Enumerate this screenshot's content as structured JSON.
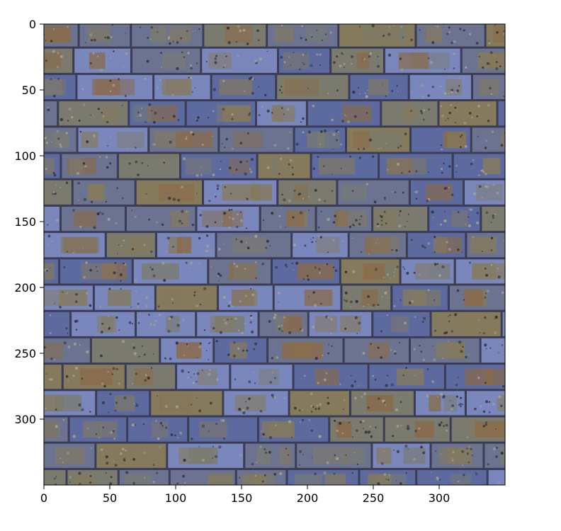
{
  "chart_data": {
    "type": "heatmap",
    "title": "",
    "xlabel": "",
    "ylabel": "",
    "xlim": [
      0,
      350
    ],
    "ylim": [
      350,
      0
    ],
    "x_ticks": [
      0,
      50,
      100,
      150,
      200,
      250,
      300
    ],
    "y_ticks": [
      0,
      50,
      100,
      150,
      200,
      250,
      300
    ],
    "x_tick_labels": [
      "0",
      "50",
      "100",
      "150",
      "200",
      "250",
      "300"
    ],
    "y_tick_labels": [
      "0",
      "50",
      "100",
      "150",
      "200",
      "250",
      "300"
    ],
    "grid": false,
    "image_content": "brick-wall-texture",
    "palette": {
      "mortar": "#3a3d55",
      "blue": "#5d6aa0",
      "blue_light": "#7a87bd",
      "slate": "#6b7390",
      "grey_olive": "#7a7b6e",
      "olive": "#857a5c",
      "rust": "#8a6a48",
      "speckle_dark": "#2f2e38",
      "speckle_light": "#a8a290"
    }
  }
}
